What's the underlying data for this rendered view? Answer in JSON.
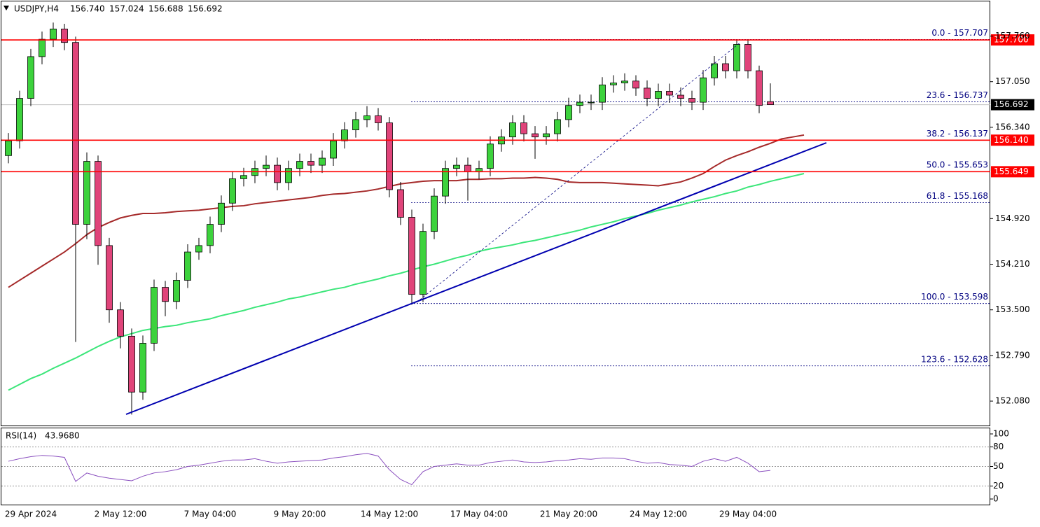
{
  "chart_data": {
    "type": "candlestick",
    "title": "USDJPY,H4",
    "header_values": [
      "156.740",
      "157.024",
      "156.688",
      "156.692"
    ],
    "categories": [
      null,
      null,
      "29 Apr 2024",
      null,
      null,
      null,
      null,
      null,
      null,
      null,
      "2 May 12:00",
      null,
      null,
      null,
      null,
      null,
      null,
      null,
      "7 May 04:00",
      null,
      null,
      null,
      null,
      null,
      null,
      null,
      "9 May 20:00",
      null,
      null,
      null,
      null,
      null,
      null,
      null,
      "14 May 12:00",
      null,
      null,
      null,
      null,
      null,
      null,
      null,
      "17 May 04:00",
      null,
      null,
      null,
      null,
      null,
      null,
      null,
      "21 May 20:00",
      null,
      null,
      null,
      null,
      null,
      null,
      null,
      "24 May 12:00",
      null,
      null,
      null,
      null,
      null,
      null,
      null,
      "29 May 04:00",
      null,
      null,
      null,
      null,
      null
    ],
    "open": [
      155.9,
      156.13,
      156.79,
      157.44,
      157.71,
      157.87,
      157.66,
      154.83,
      155.81,
      154.5,
      153.5,
      153.09,
      152.22,
      152.98,
      153.85,
      153.63,
      153.96,
      154.4,
      154.5,
      154.83,
      155.16,
      155.54,
      155.59,
      155.7,
      155.75,
      155.48,
      155.7,
      155.81,
      155.75,
      155.86,
      156.13,
      156.3,
      156.46,
      156.52,
      156.41,
      155.37,
      154.94,
      153.74,
      154.72,
      155.27,
      155.7,
      155.75,
      155.65,
      155.7,
      156.08,
      156.19,
      156.41,
      156.24,
      156.19,
      156.24,
      156.46,
      156.68,
      156.73,
      156.73,
      157.0,
      157.03,
      157.06,
      156.95,
      156.79,
      156.9,
      156.84,
      156.79,
      156.73,
      157.11,
      157.33,
      157.22,
      157.63,
      157.22,
      156.74,
      null,
      null,
      null
    ],
    "high": [
      156.25,
      156.91,
      157.56,
      157.83,
      157.97,
      157.95,
      157.75,
      155.95,
      155.9,
      154.62,
      153.62,
      153.21,
      153.1,
      153.97,
      153.95,
      154.08,
      154.52,
      154.62,
      154.95,
      155.28,
      155.66,
      155.71,
      155.82,
      155.9,
      155.87,
      155.82,
      155.93,
      155.93,
      155.98,
      156.25,
      156.42,
      156.58,
      156.67,
      156.64,
      156.5,
      155.49,
      155.06,
      154.84,
      155.39,
      155.82,
      155.87,
      155.87,
      155.82,
      156.2,
      156.31,
      156.53,
      156.53,
      156.36,
      156.36,
      156.58,
      156.8,
      156.85,
      156.85,
      157.12,
      157.15,
      157.18,
      157.15,
      157.07,
      157.02,
      157.02,
      156.96,
      156.91,
      157.23,
      157.45,
      157.45,
      157.707,
      157.7,
      157.3,
      157.024,
      null,
      null,
      null
    ],
    "low": [
      155.78,
      156.01,
      156.67,
      157.32,
      157.59,
      157.54,
      153.0,
      154.6,
      154.2,
      153.3,
      152.9,
      151.87,
      152.1,
      152.86,
      153.4,
      153.51,
      153.84,
      154.28,
      154.38,
      154.71,
      155.04,
      155.42,
      155.47,
      155.58,
      155.36,
      155.36,
      155.58,
      155.63,
      155.63,
      155.74,
      156.01,
      156.18,
      156.34,
      156.29,
      155.25,
      154.82,
      153.58,
      153.62,
      154.6,
      155.15,
      155.58,
      155.2,
      155.53,
      155.58,
      155.96,
      156.07,
      156.12,
      155.85,
      156.07,
      156.12,
      156.34,
      156.56,
      156.61,
      156.61,
      156.88,
      156.91,
      156.83,
      156.67,
      156.67,
      156.72,
      156.67,
      156.61,
      156.61,
      156.99,
      157.1,
      157.1,
      157.1,
      156.56,
      156.688,
      null,
      null,
      null
    ],
    "close": [
      156.13,
      156.79,
      157.44,
      157.71,
      157.87,
      157.66,
      154.83,
      155.81,
      154.5,
      153.5,
      153.09,
      152.22,
      152.98,
      153.85,
      153.63,
      153.96,
      154.4,
      154.5,
      154.83,
      155.16,
      155.54,
      155.59,
      155.7,
      155.75,
      155.48,
      155.7,
      155.81,
      155.75,
      155.86,
      156.13,
      156.3,
      156.46,
      156.52,
      156.41,
      155.37,
      154.94,
      153.74,
      154.72,
      155.27,
      155.7,
      155.75,
      155.65,
      155.7,
      156.08,
      156.19,
      156.41,
      156.24,
      156.19,
      156.24,
      156.46,
      156.68,
      156.73,
      156.73,
      157.0,
      157.03,
      157.06,
      156.95,
      156.79,
      156.9,
      156.84,
      156.79,
      156.73,
      157.11,
      157.33,
      157.22,
      157.63,
      157.22,
      156.68,
      156.692,
      null,
      null,
      null
    ],
    "up_color": "#3cd23c",
    "down_color": "#e0447a",
    "ylim": [
      151.7,
      158.31
    ],
    "yticks": [
      {
        "value": 157.76,
        "label": "157.760"
      },
      {
        "value": 157.05,
        "label": "157.050"
      },
      {
        "value": 156.34,
        "label": "156.340"
      },
      {
        "value": 154.92,
        "label": "154.920"
      },
      {
        "value": 154.21,
        "label": "154.210"
      },
      {
        "value": 153.5,
        "label": "153.500"
      },
      {
        "value": 152.79,
        "label": "152.790"
      },
      {
        "value": 152.08,
        "label": "152.080"
      }
    ],
    "moving_averages": [
      {
        "color": "#a52a2a",
        "values": [
          153.85,
          153.96,
          154.07,
          154.18,
          154.29,
          154.4,
          154.53,
          154.67,
          154.78,
          154.86,
          154.93,
          154.97,
          155.0,
          155.0,
          155.01,
          155.03,
          155.04,
          155.05,
          155.07,
          155.09,
          155.11,
          155.12,
          155.15,
          155.17,
          155.19,
          155.21,
          155.23,
          155.25,
          155.28,
          155.3,
          155.31,
          155.33,
          155.35,
          155.38,
          155.42,
          155.46,
          155.48,
          155.5,
          155.51,
          155.51,
          155.51,
          155.53,
          155.53,
          155.54,
          155.54,
          155.55,
          155.55,
          155.56,
          155.55,
          155.53,
          155.49,
          155.48,
          155.48,
          155.48,
          155.47,
          155.46,
          155.45,
          155.44,
          155.43,
          155.46,
          155.49,
          155.55,
          155.62,
          155.73,
          155.83,
          155.9,
          155.96,
          156.03,
          156.09,
          156.16,
          156.19,
          156.22
        ]
      },
      {
        "color": "#3ce67a",
        "values": [
          152.25,
          152.34,
          152.43,
          152.5,
          152.59,
          152.67,
          152.75,
          152.84,
          152.93,
          153.01,
          153.08,
          153.13,
          153.18,
          153.21,
          153.24,
          153.26,
          153.3,
          153.33,
          153.36,
          153.41,
          153.45,
          153.49,
          153.54,
          153.58,
          153.62,
          153.67,
          153.7,
          153.74,
          153.78,
          153.82,
          153.85,
          153.9,
          153.94,
          153.98,
          154.03,
          154.07,
          154.12,
          154.17,
          154.21,
          154.26,
          154.31,
          154.35,
          154.41,
          154.45,
          154.48,
          154.51,
          154.55,
          154.58,
          154.62,
          154.66,
          154.7,
          154.74,
          154.79,
          154.83,
          154.87,
          154.92,
          154.96,
          155.0,
          155.05,
          155.09,
          155.13,
          155.18,
          155.22,
          155.26,
          155.31,
          155.35,
          155.41,
          155.45,
          155.5,
          155.54,
          155.58,
          155.62
        ]
      }
    ],
    "levels": [
      {
        "value": 157.7,
        "label": "157.700",
        "color": "#ff0000"
      },
      {
        "value": 156.14,
        "label": "156.140",
        "color": "#ff0000"
      },
      {
        "value": 155.649,
        "label": "155.649",
        "color": "#ff0000"
      }
    ],
    "last_price": {
      "value": 156.692,
      "label": "156.692",
      "color": "#000000"
    },
    "fib_levels": [
      {
        "value": 157.707,
        "label": "0.0 - 157.707"
      },
      {
        "value": 156.737,
        "label": "23.6 - 156.737"
      },
      {
        "value": 156.137,
        "label": "38.2 - 156.137"
      },
      {
        "value": 155.653,
        "label": "50.0 - 155.653"
      },
      {
        "value": 155.168,
        "label": "61.8 - 155.168"
      },
      {
        "value": 153.598,
        "label": "100.0 - 153.598"
      },
      {
        "value": 152.628,
        "label": "123.6 - 152.628"
      }
    ],
    "fib_color": "#000080",
    "rsi": {
      "title": "RSI(14)",
      "value_label": "43.9680",
      "color": "#8a4fbf",
      "ylim": [
        0,
        100
      ],
      "yticks": [
        100,
        80,
        50,
        20,
        0
      ],
      "levels": [
        80,
        50,
        20
      ],
      "values": [
        58,
        62,
        65,
        67,
        66,
        64,
        27,
        40,
        35,
        32,
        30,
        28,
        35,
        40,
        42,
        45,
        50,
        52,
        55,
        58,
        60,
        60,
        62,
        58,
        55,
        57,
        58,
        59,
        60,
        63,
        65,
        68,
        70,
        66,
        45,
        30,
        22,
        42,
        50,
        52,
        54,
        52,
        52,
        56,
        58,
        60,
        57,
        56,
        57,
        59,
        60,
        62,
        61,
        63,
        63,
        62,
        58,
        55,
        56,
        53,
        52,
        50,
        58,
        62,
        58,
        64,
        55,
        42,
        43.968,
        null,
        null,
        null
      ]
    }
  }
}
